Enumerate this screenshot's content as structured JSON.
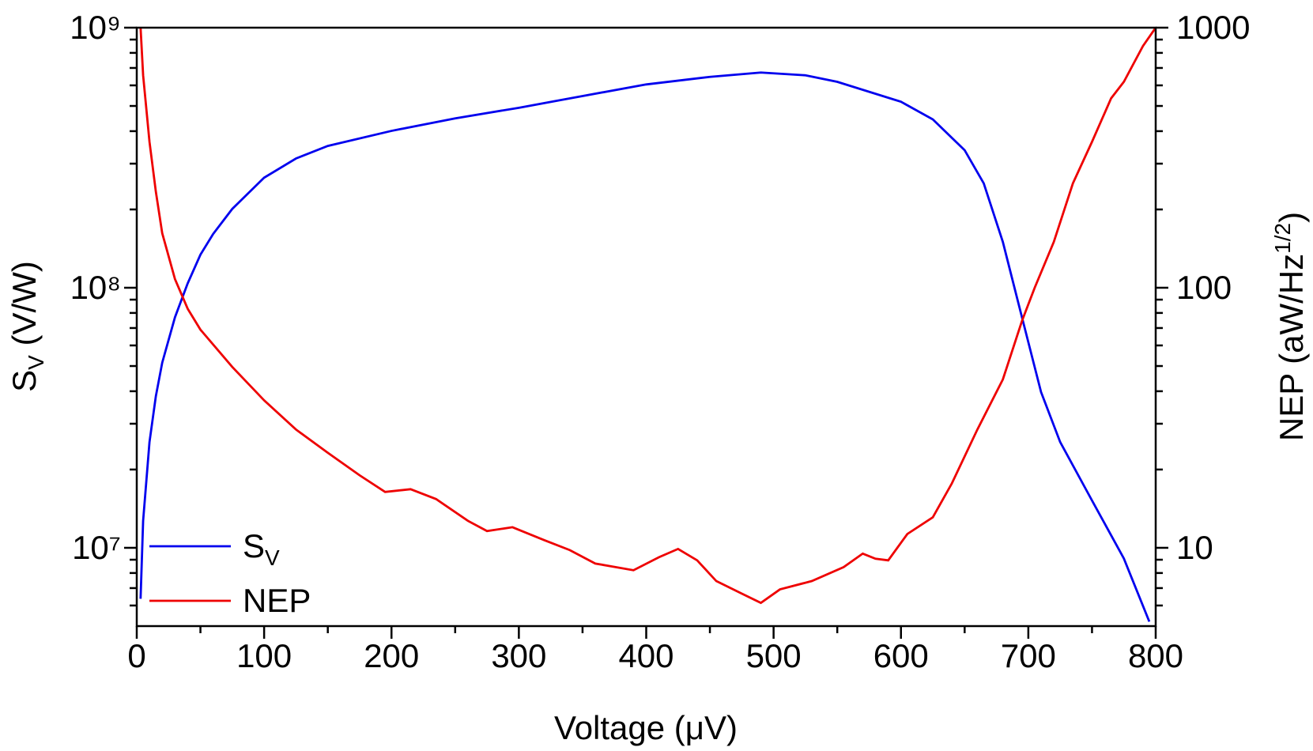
{
  "chart_data": {
    "type": "line",
    "xlabel": "Voltage (μV)",
    "ylabel": [
      "S",
      "V",
      " (V/W)"
    ],
    "y2label": [
      "NEP (aW/Hz",
      "1/2",
      ")"
    ],
    "xlim": [
      0,
      800
    ],
    "xticks": [
      0,
      100,
      200,
      300,
      400,
      500,
      600,
      700,
      800
    ],
    "minor_xticks": [
      50,
      150,
      250,
      350,
      450,
      550,
      650,
      750
    ],
    "ylim": [
      5000000,
      1000000000
    ],
    "yscale": "log",
    "yticks": [
      {
        "value": 10000000,
        "label": "10⁷"
      },
      {
        "value": 100000000,
        "label": "10⁸"
      },
      {
        "value": 1000000000,
        "label": "10⁹"
      }
    ],
    "minor_yticks": [
      6000000,
      7000000,
      8000000,
      9000000,
      20000000,
      30000000,
      40000000,
      50000000,
      60000000,
      70000000,
      80000000,
      90000000,
      200000000,
      300000000,
      400000000,
      500000000,
      600000000,
      700000000,
      800000000,
      900000000
    ],
    "y2lim": [
      5,
      1000
    ],
    "y2scale": "log",
    "y2ticks": [
      10,
      100,
      1000
    ],
    "minor_y2ticks": [
      6,
      7,
      8,
      9,
      20,
      30,
      40,
      50,
      60,
      70,
      80,
      90,
      200,
      300,
      400,
      500,
      600,
      700,
      800,
      900
    ],
    "legend": "lower left",
    "series": [
      {
        "name": [
          "S",
          "V"
        ],
        "color": "#0000ee",
        "axis": "y",
        "x": [
          3,
          5,
          10,
          15,
          20,
          30,
          40,
          50,
          60,
          75,
          100,
          125,
          150,
          200,
          250,
          300,
          350,
          400,
          450,
          490,
          525,
          550,
          600,
          625,
          650,
          665,
          680,
          695,
          710,
          725,
          750,
          775,
          795
        ],
        "values": [
          6370000,
          12700000,
          25500000,
          38300000,
          51500000,
          77000000,
          104000000,
          134000000,
          161000000,
          201000000,
          265000000,
          314000000,
          351000000,
          401000000,
          448000000,
          492000000,
          546000000,
          605000000,
          647000000,
          672000000,
          656000000,
          619000000,
          519000000,
          444000000,
          338000000,
          252000000,
          150000000,
          77000000,
          39700000,
          25500000,
          15200000,
          9100000,
          5200000
        ]
      },
      {
        "name": [
          "NEP"
        ],
        "color": "#ee0000",
        "axis": "y2",
        "x": [
          3,
          5,
          10,
          15,
          20,
          30,
          40,
          50,
          75,
          100,
          125,
          150,
          175,
          195,
          215,
          235,
          260,
          275,
          295,
          320,
          340,
          360,
          390,
          410,
          425,
          440,
          455,
          475,
          490,
          505,
          530,
          555,
          570,
          580,
          590,
          605,
          625,
          640,
          660,
          680,
          695,
          705,
          720,
          735,
          750,
          765,
          775,
          790,
          800
        ],
        "values": [
          1000,
          656,
          364,
          234,
          162,
          108,
          83,
          69,
          49.6,
          36.9,
          28.5,
          23.2,
          19,
          16.4,
          16.8,
          15.4,
          12.7,
          11.6,
          12,
          10.7,
          9.8,
          8.7,
          8.2,
          9.2,
          9.9,
          8.95,
          7.45,
          6.67,
          6.14,
          6.92,
          7.45,
          8.43,
          9.5,
          9.08,
          8.95,
          11.3,
          13.1,
          17.7,
          28.5,
          44.4,
          74.5,
          100,
          150,
          252,
          364,
          535,
          619,
          850,
          1000
        ]
      }
    ]
  }
}
